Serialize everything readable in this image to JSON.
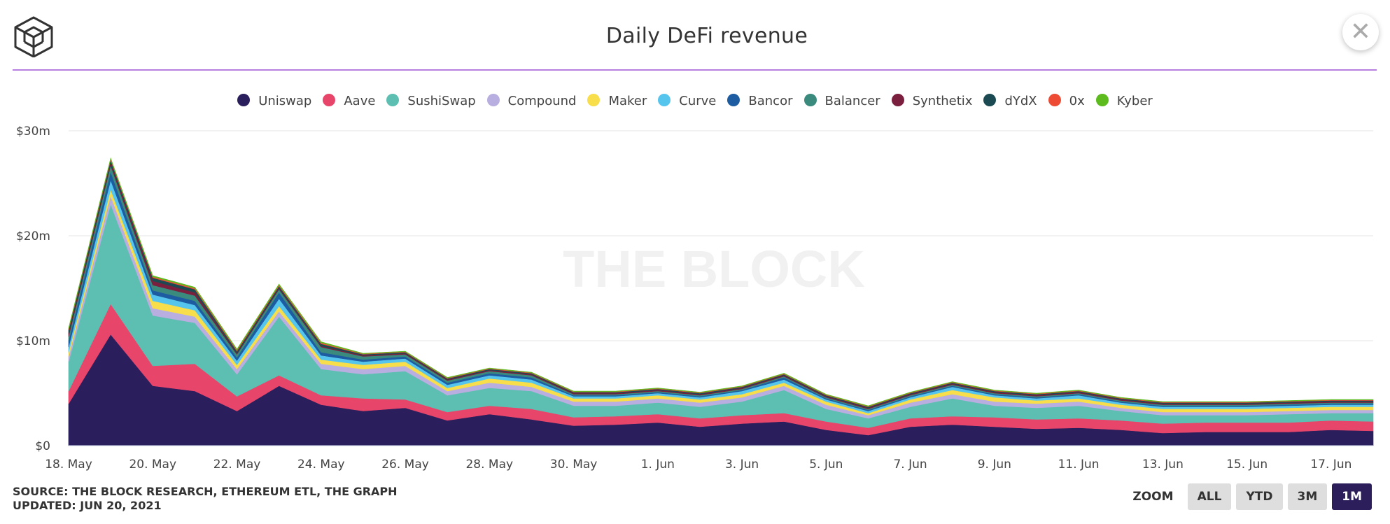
{
  "title": "Daily DeFi revenue",
  "watermark": "THE BLOCK",
  "close_icon": "close-icon",
  "logo_icon": "cube-logo-icon",
  "colors": {
    "accent_rule": "#b77fe0",
    "zoom_active": "#2c1e5a"
  },
  "footer": {
    "source": "SOURCE: THE BLOCK RESEARCH, ETHEREUM ETL, THE GRAPH",
    "updated": "UPDATED: JUN 20, 2021"
  },
  "zoom": {
    "label": "ZOOM",
    "options": [
      "ALL",
      "YTD",
      "3M",
      "1M"
    ],
    "selected": "1M"
  },
  "chart_data": {
    "type": "area",
    "stacked": true,
    "title": "Daily DeFi revenue",
    "xlabel": "",
    "ylabel": "",
    "ylim": [
      0,
      30
    ],
    "y_unit": "$m",
    "y_ticks": [
      "$0",
      "$10m",
      "$20m",
      "$30m"
    ],
    "grid": true,
    "legend_position": "top-center",
    "x_tick_labels": [
      "18. May",
      "20. May",
      "22. May",
      "24. May",
      "26. May",
      "28. May",
      "30. May",
      "1. Jun",
      "3. Jun",
      "5. Jun",
      "7. Jun",
      "9. Jun",
      "11. Jun",
      "13. Jun",
      "15. Jun",
      "17. Jun"
    ],
    "x": [
      "2021-05-18",
      "2021-05-19",
      "2021-05-20",
      "2021-05-21",
      "2021-05-22",
      "2021-05-23",
      "2021-05-24",
      "2021-05-25",
      "2021-05-26",
      "2021-05-27",
      "2021-05-28",
      "2021-05-29",
      "2021-05-30",
      "2021-05-31",
      "2021-06-01",
      "2021-06-02",
      "2021-06-03",
      "2021-06-04",
      "2021-06-05",
      "2021-06-06",
      "2021-06-07",
      "2021-06-08",
      "2021-06-09",
      "2021-06-10",
      "2021-06-11",
      "2021-06-12",
      "2021-06-13",
      "2021-06-14",
      "2021-06-15",
      "2021-06-16",
      "2021-06-17",
      "2021-06-18"
    ],
    "series": [
      {
        "name": "Uniswap",
        "color": "#2b1e5c",
        "values": [
          4.0,
          10.6,
          5.7,
          5.2,
          3.3,
          5.7,
          3.9,
          3.3,
          3.6,
          2.4,
          3.0,
          2.5,
          1.9,
          2.0,
          2.2,
          1.8,
          2.1,
          2.3,
          1.5,
          1.0,
          1.8,
          2.0,
          1.8,
          1.6,
          1.7,
          1.5,
          1.2,
          1.3,
          1.3,
          1.3,
          1.5,
          1.4
        ]
      },
      {
        "name": "Aave",
        "color": "#e8456b",
        "values": [
          1.2,
          2.9,
          1.9,
          2.6,
          1.4,
          1.0,
          0.9,
          1.2,
          0.8,
          0.8,
          0.8,
          1.0,
          0.8,
          0.8,
          0.8,
          0.8,
          0.8,
          0.8,
          0.8,
          0.7,
          0.8,
          0.8,
          0.9,
          0.9,
          0.9,
          0.9,
          0.9,
          0.9,
          0.9,
          0.9,
          0.9,
          0.9
        ]
      },
      {
        "name": "SushiSwap",
        "color": "#5cbfb1",
        "values": [
          2.8,
          9.5,
          4.8,
          3.9,
          2.1,
          5.6,
          2.5,
          2.3,
          2.7,
          1.6,
          1.7,
          1.7,
          1.1,
          1.0,
          1.1,
          1.1,
          1.3,
          2.2,
          1.2,
          0.9,
          1.1,
          1.7,
          1.1,
          1.1,
          1.2,
          0.9,
          0.8,
          0.7,
          0.7,
          0.8,
          0.7,
          0.8
        ]
      },
      {
        "name": "Compound",
        "color": "#b8aee0",
        "values": [
          0.5,
          0.8,
          0.7,
          0.6,
          0.5,
          0.5,
          0.5,
          0.5,
          0.5,
          0.4,
          0.5,
          0.4,
          0.4,
          0.4,
          0.4,
          0.4,
          0.4,
          0.4,
          0.4,
          0.3,
          0.4,
          0.4,
          0.4,
          0.4,
          0.4,
          0.3,
          0.3,
          0.3,
          0.3,
          0.3,
          0.3,
          0.3
        ]
      },
      {
        "name": "Maker",
        "color": "#f7de4a",
        "values": [
          0.4,
          0.6,
          0.7,
          0.6,
          0.4,
          0.5,
          0.4,
          0.4,
          0.4,
          0.3,
          0.4,
          0.4,
          0.3,
          0.3,
          0.3,
          0.3,
          0.3,
          0.3,
          0.3,
          0.2,
          0.3,
          0.4,
          0.4,
          0.3,
          0.3,
          0.3,
          0.3,
          0.3,
          0.3,
          0.3,
          0.3,
          0.3
        ]
      },
      {
        "name": "Curve",
        "color": "#56c5ee",
        "values": [
          0.5,
          0.9,
          0.6,
          0.5,
          0.4,
          0.7,
          0.4,
          0.3,
          0.3,
          0.3,
          0.3,
          0.3,
          0.2,
          0.2,
          0.2,
          0.2,
          0.3,
          0.3,
          0.2,
          0.2,
          0.2,
          0.3,
          0.2,
          0.2,
          0.3,
          0.2,
          0.2,
          0.2,
          0.2,
          0.2,
          0.2,
          0.2
        ]
      },
      {
        "name": "Bancor",
        "color": "#1d5ca0",
        "values": [
          0.6,
          0.8,
          0.4,
          0.4,
          0.3,
          0.6,
          0.3,
          0.2,
          0.2,
          0.2,
          0.2,
          0.2,
          0.1,
          0.1,
          0.1,
          0.1,
          0.1,
          0.2,
          0.1,
          0.1,
          0.1,
          0.1,
          0.1,
          0.1,
          0.1,
          0.1,
          0.1,
          0.1,
          0.1,
          0.1,
          0.1,
          0.1
        ]
      },
      {
        "name": "Balancer",
        "color": "#3a8b7e",
        "values": [
          0.4,
          0.6,
          0.5,
          0.5,
          0.3,
          0.3,
          0.5,
          0.3,
          0.2,
          0.2,
          0.2,
          0.2,
          0.1,
          0.1,
          0.1,
          0.1,
          0.1,
          0.1,
          0.1,
          0.1,
          0.1,
          0.1,
          0.1,
          0.1,
          0.1,
          0.1,
          0.1,
          0.1,
          0.1,
          0.1,
          0.1,
          0.1
        ]
      },
      {
        "name": "Synthetix",
        "color": "#7a1f3d",
        "values": [
          0.3,
          0.2,
          0.4,
          0.3,
          0.1,
          0.1,
          0.1,
          0.1,
          0.1,
          0.1,
          0.1,
          0.1,
          0.1,
          0.1,
          0.1,
          0.1,
          0.1,
          0.1,
          0.1,
          0.1,
          0.1,
          0.1,
          0.1,
          0.1,
          0.1,
          0.1,
          0.1,
          0.1,
          0.1,
          0.1,
          0.1,
          0.1
        ]
      },
      {
        "name": "dYdX",
        "color": "#1c4a52",
        "values": [
          0.3,
          0.3,
          0.3,
          0.3,
          0.2,
          0.2,
          0.2,
          0.1,
          0.1,
          0.1,
          0.1,
          0.1,
          0.1,
          0.1,
          0.1,
          0.1,
          0.1,
          0.1,
          0.1,
          0.1,
          0.1,
          0.1,
          0.1,
          0.1,
          0.1,
          0.1,
          0.1,
          0.1,
          0.1,
          0.1,
          0.1,
          0.1
        ]
      },
      {
        "name": "0x",
        "color": "#ee4b34",
        "values": [
          0.1,
          0.1,
          0.1,
          0.1,
          0.1,
          0.1,
          0.1,
          0.05,
          0.05,
          0.05,
          0.05,
          0.05,
          0.05,
          0.05,
          0.05,
          0.05,
          0.05,
          0.05,
          0.05,
          0.05,
          0.05,
          0.05,
          0.05,
          0.05,
          0.05,
          0.05,
          0.05,
          0.05,
          0.05,
          0.05,
          0.05,
          0.05
        ]
      },
      {
        "name": "Kyber",
        "color": "#5dbb1e",
        "values": [
          0.1,
          0.1,
          0.1,
          0.1,
          0.1,
          0.1,
          0.1,
          0.05,
          0.05,
          0.05,
          0.05,
          0.05,
          0.05,
          0.05,
          0.05,
          0.05,
          0.05,
          0.05,
          0.05,
          0.05,
          0.05,
          0.05,
          0.05,
          0.05,
          0.05,
          0.05,
          0.05,
          0.05,
          0.05,
          0.05,
          0.05,
          0.05
        ]
      }
    ]
  }
}
